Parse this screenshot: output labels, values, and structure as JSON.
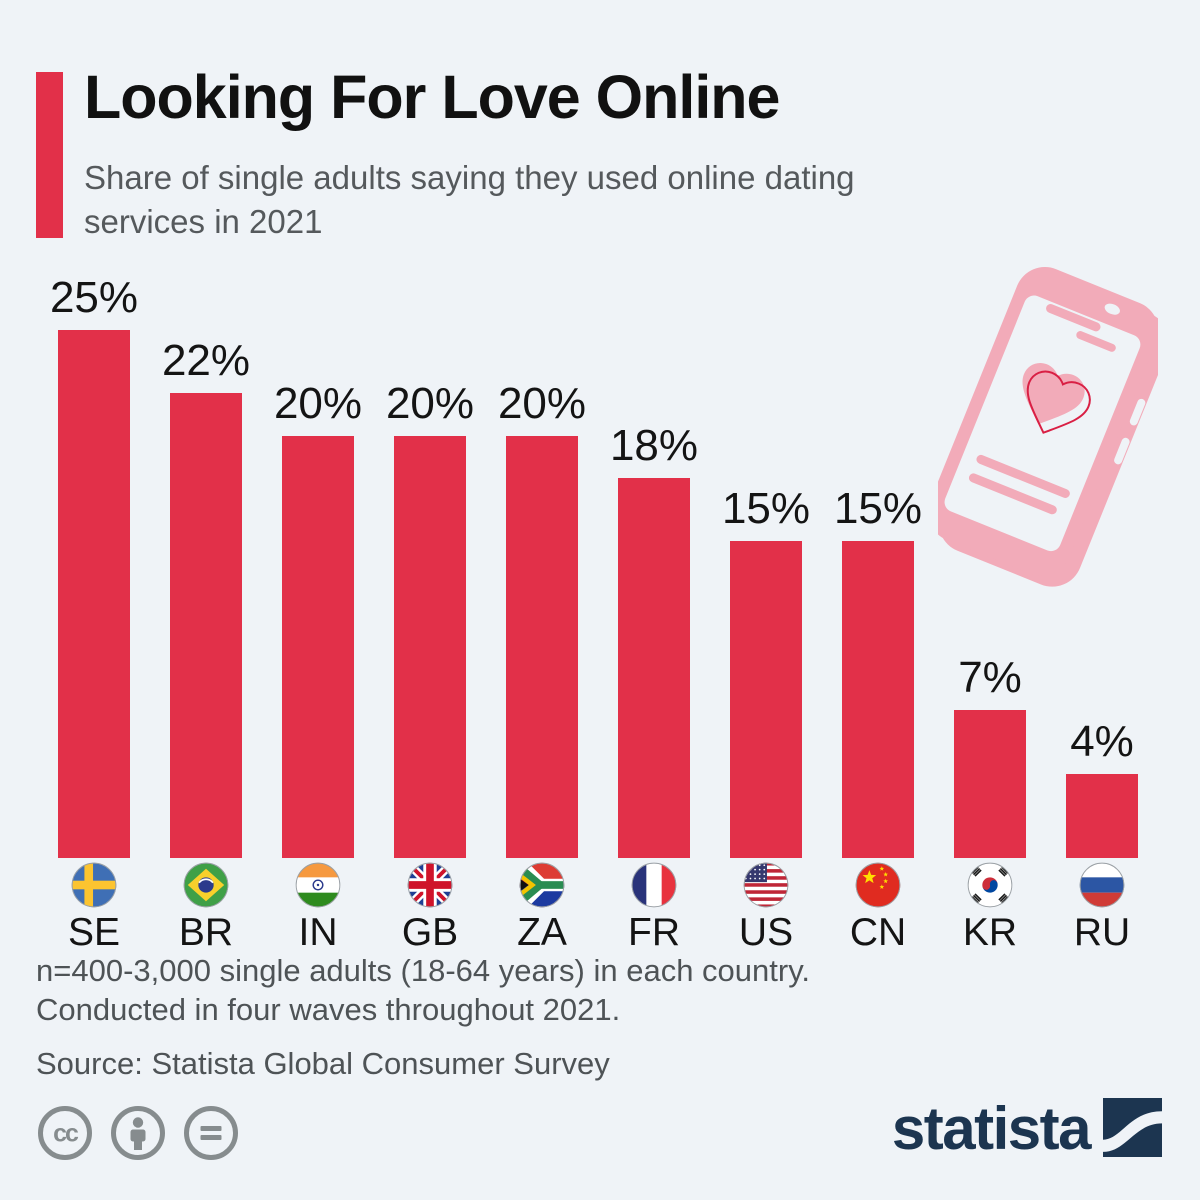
{
  "header": {
    "title": "Looking For Love Online",
    "subtitle_line1": "Share of single adults saying they used online dating",
    "subtitle_line2": "services in 2021"
  },
  "chart_data": {
    "type": "bar",
    "categories": [
      "SE",
      "BR",
      "IN",
      "GB",
      "ZA",
      "FR",
      "US",
      "CN",
      "KR",
      "RU"
    ],
    "values": [
      25,
      22,
      20,
      20,
      20,
      18,
      15,
      15,
      7,
      4
    ],
    "value_labels": [
      "25%",
      "22%",
      "20%",
      "20%",
      "20%",
      "18%",
      "15%",
      "15%",
      "7%",
      "4%"
    ],
    "title": "Looking For Love Online",
    "xlabel": "",
    "ylabel": "",
    "ylim": [
      0,
      27
    ],
    "grid": false,
    "legend": false,
    "bar_color": "#e23049",
    "category_icons": [
      "flag-se-icon",
      "flag-br-icon",
      "flag-in-icon",
      "flag-gb-icon",
      "flag-za-icon",
      "flag-fr-icon",
      "flag-us-icon",
      "flag-cn-icon",
      "flag-kr-icon",
      "flag-ru-icon"
    ]
  },
  "footer": {
    "note_line1": "n=400-3,000 single adults (18-64 years) in each country.",
    "note_line2": "Conducted in four waves throughout 2021.",
    "source": "Source: Statista Global Consumer Survey"
  },
  "branding": {
    "logo_text": "statista",
    "license_icons": [
      "cc-icon",
      "attribution-person-icon",
      "equals-icon"
    ]
  },
  "colors": {
    "background": "#eff3f7",
    "bar": "#e23049",
    "accent": "#e23049",
    "title_text": "#111111",
    "subtitle_text": "#55595c",
    "footnote_text": "#4e5356",
    "logo_navy": "#1c3550",
    "icon_gray": "#868c8e",
    "phone_pink": "#f2abb9",
    "heart_outline_red": "#d91f44"
  }
}
